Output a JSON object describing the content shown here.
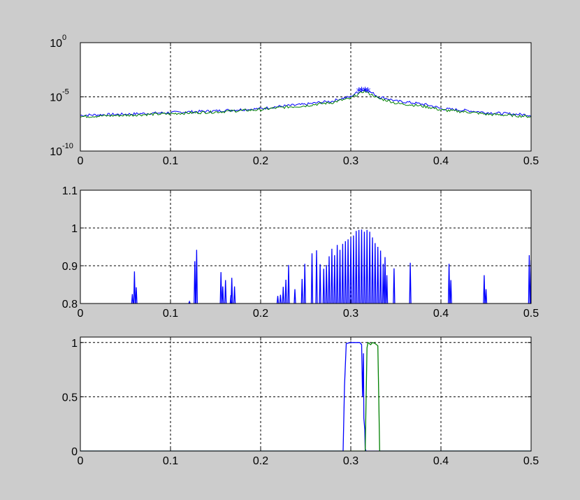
{
  "window": {
    "background": "#cccccc"
  },
  "chart_data": [
    {
      "type": "line",
      "title": "",
      "xlabel": "",
      "ylabel": "",
      "yscale": "log",
      "xlim": [
        0,
        0.5
      ],
      "ylim": [
        1e-10,
        1
      ],
      "grid": true,
      "x_tick_labels": [
        "0",
        "0.1",
        "0.2",
        "0.3",
        "0.4",
        "0.5"
      ],
      "x_tick_values": [
        0,
        0.1,
        0.2,
        0.3,
        0.4,
        0.5
      ],
      "y_tick_labels": [
        {
          "base": "10",
          "exp": "-10"
        },
        {
          "base": "10",
          "exp": "-5"
        },
        {
          "base": "10",
          "exp": "0"
        }
      ],
      "y_tick_values": [
        1e-10,
        1e-05,
        1
      ],
      "series": [
        {
          "color": "#0000ff",
          "x": [
            0,
            0.05,
            0.1,
            0.15,
            0.2,
            0.25,
            0.28,
            0.3,
            0.31,
            0.315,
            0.32,
            0.33,
            0.35,
            0.4,
            0.45,
            0.5
          ],
          "y": [
            2e-07,
            2.5e-07,
            3.5e-07,
            5e-07,
            8e-07,
            2e-06,
            4e-06,
            1e-05,
            3e-05,
            5e-05,
            3e-05,
            1e-05,
            4e-06,
            8e-07,
            3.5e-07,
            2e-07
          ]
        },
        {
          "color": "#008000",
          "x": [
            0,
            0.05,
            0.1,
            0.15,
            0.2,
            0.25,
            0.28,
            0.3,
            0.31,
            0.315,
            0.32,
            0.33,
            0.35,
            0.4,
            0.45,
            0.5
          ],
          "y": [
            1.5e-07,
            2e-07,
            2.8e-07,
            4e-07,
            6.5e-07,
            1.5e-06,
            3e-06,
            7e-06,
            2e-05,
            3.5e-05,
            2e-05,
            7e-06,
            2.5e-06,
            6e-07,
            2.5e-07,
            1.5e-07
          ]
        }
      ],
      "markers": {
        "color": "#0000ff",
        "symbol": "*",
        "x": [
          0.309,
          0.312,
          0.316,
          0.319
        ],
        "y": [
          4.5e-05,
          5e-05,
          5e-05,
          4.5e-05
        ]
      }
    },
    {
      "type": "line",
      "title": "",
      "xlabel": "",
      "ylabel": "",
      "xlim": [
        0,
        0.5
      ],
      "ylim": [
        0.8,
        1.1
      ],
      "grid": true,
      "x_tick_labels": [
        "0",
        "0.1",
        "0.2",
        "0.3",
        "0.4",
        "0.5"
      ],
      "x_tick_values": [
        0,
        0.1,
        0.2,
        0.3,
        0.4,
        0.5
      ],
      "y_tick_labels": [
        "0.8",
        "0.9",
        "1",
        "1.1"
      ],
      "y_tick_values": [
        0.8,
        0.9,
        1.0,
        1.1
      ],
      "series": [
        {
          "color": "#0000ff",
          "spikes": [
            {
              "x": 0.0577,
              "y": 0.825
            },
            {
              "x": 0.06,
              "y": 0.885
            },
            {
              "x": 0.062,
              "y": 0.843
            },
            {
              "x": 0.121,
              "y": 0.805
            },
            {
              "x": 0.127,
              "y": 0.912
            },
            {
              "x": 0.129,
              "y": 0.942
            },
            {
              "x": 0.156,
              "y": 0.883
            },
            {
              "x": 0.158,
              "y": 0.845
            },
            {
              "x": 0.161,
              "y": 0.862
            },
            {
              "x": 0.167,
              "y": 0.822
            },
            {
              "x": 0.168,
              "y": 0.868
            },
            {
              "x": 0.171,
              "y": 0.845
            },
            {
              "x": 0.219,
              "y": 0.82
            },
            {
              "x": 0.222,
              "y": 0.823
            },
            {
              "x": 0.225,
              "y": 0.844
            },
            {
              "x": 0.228,
              "y": 0.863
            },
            {
              "x": 0.231,
              "y": 0.902
            },
            {
              "x": 0.238,
              "y": 0.838
            },
            {
              "x": 0.246,
              "y": 0.865
            },
            {
              "x": 0.249,
              "y": 0.905
            },
            {
              "x": 0.257,
              "y": 0.933
            },
            {
              "x": 0.262,
              "y": 0.941
            },
            {
              "x": 0.266,
              "y": 0.904
            },
            {
              "x": 0.27,
              "y": 0.892
            },
            {
              "x": 0.273,
              "y": 0.902
            },
            {
              "x": 0.276,
              "y": 0.925
            },
            {
              "x": 0.279,
              "y": 0.945
            },
            {
              "x": 0.282,
              "y": 0.928
            },
            {
              "x": 0.285,
              "y": 0.955
            },
            {
              "x": 0.288,
              "y": 0.942
            },
            {
              "x": 0.291,
              "y": 0.958
            },
            {
              "x": 0.294,
              "y": 0.965
            },
            {
              "x": 0.297,
              "y": 0.97
            },
            {
              "x": 0.3,
              "y": 0.975
            },
            {
              "x": 0.303,
              "y": 0.98
            },
            {
              "x": 0.306,
              "y": 0.992
            },
            {
              "x": 0.309,
              "y": 0.995
            },
            {
              "x": 0.312,
              "y": 0.996
            },
            {
              "x": 0.315,
              "y": 0.99
            },
            {
              "x": 0.318,
              "y": 0.995
            },
            {
              "x": 0.321,
              "y": 0.99
            },
            {
              "x": 0.324,
              "y": 0.975
            },
            {
              "x": 0.327,
              "y": 0.96
            },
            {
              "x": 0.33,
              "y": 0.95
            },
            {
              "x": 0.333,
              "y": 0.94
            },
            {
              "x": 0.336,
              "y": 0.905
            },
            {
              "x": 0.338,
              "y": 0.923
            },
            {
              "x": 0.34,
              "y": 0.875
            },
            {
              "x": 0.348,
              "y": 0.893
            },
            {
              "x": 0.366,
              "y": 0.908
            },
            {
              "x": 0.409,
              "y": 0.905
            },
            {
              "x": 0.411,
              "y": 0.862
            },
            {
              "x": 0.448,
              "y": 0.875
            },
            {
              "x": 0.45,
              "y": 0.838
            },
            {
              "x": 0.498,
              "y": 0.928
            },
            {
              "x": 0.5,
              "y": 0.915
            }
          ]
        }
      ]
    },
    {
      "type": "line",
      "title": "",
      "xlabel": "",
      "ylabel": "",
      "xlim": [
        0,
        0.5
      ],
      "ylim": [
        0,
        1.05
      ],
      "grid": true,
      "x_tick_labels": [
        "0",
        "0.1",
        "0.2",
        "0.3",
        "0.4",
        "0.5"
      ],
      "x_tick_values": [
        0,
        0.1,
        0.2,
        0.3,
        0.4,
        0.5
      ],
      "y_tick_labels": [
        "0",
        "0.5",
        "1"
      ],
      "y_tick_values": [
        0,
        0.5,
        1
      ],
      "series": [
        {
          "color": "#0000ff",
          "x": [
            0,
            0.2915,
            0.293,
            0.295,
            0.3,
            0.31,
            0.312,
            0.313,
            0.314,
            0.3145,
            0.3155,
            0.316,
            0.317,
            0.5
          ],
          "y": [
            0,
            0,
            0.6,
            0.99,
            1.0,
            1.0,
            0.98,
            0.5,
            0.9,
            0.3,
            0.2,
            0.02,
            0,
            0
          ]
        },
        {
          "color": "#008000",
          "x": [
            0,
            0.316,
            0.318,
            0.319,
            0.322,
            0.324,
            0.327,
            0.33,
            0.331,
            0.332,
            0.5
          ],
          "y": [
            0,
            0,
            0.95,
            1.0,
            0.98,
            1.0,
            0.99,
            0.97,
            0.5,
            0,
            0
          ]
        }
      ]
    }
  ]
}
